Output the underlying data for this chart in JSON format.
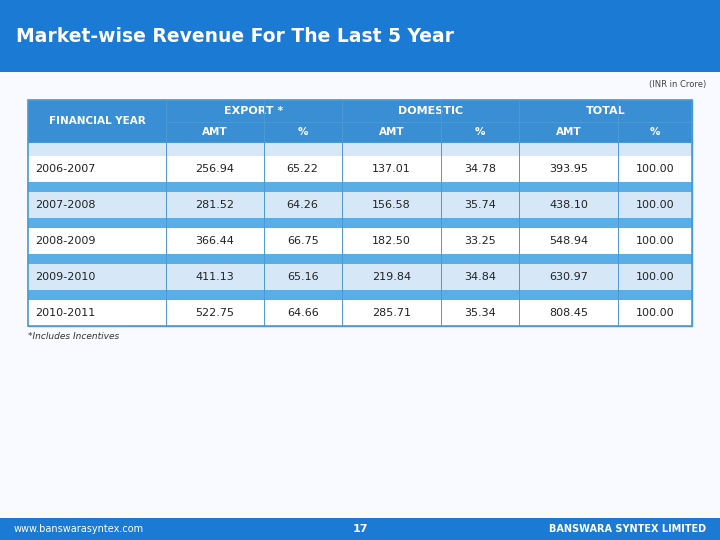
{
  "title": "Market-wise Revenue For The Last 5 Year",
  "subtitle": "(INR in Crore)",
  "header_bg": "#3a8fd4",
  "header_text_color": "#ffffff",
  "row_bg_light": "#d6e8f7",
  "row_bg_white": "#ffffff",
  "row_separator_color": "#5aaee8",
  "table_border_color": "#4a9ad4",
  "rows": [
    [
      "2006-2007",
      "256.94",
      "65.22",
      "137.01",
      "34.78",
      "393.95",
      "100.00"
    ],
    [
      "2007-2008",
      "281.52",
      "64.26",
      "156.58",
      "35.74",
      "438.10",
      "100.00"
    ],
    [
      "2008-2009",
      "366.44",
      "66.75",
      "182.50",
      "33.25",
      "548.94",
      "100.00"
    ],
    [
      "2009-2010",
      "411.13",
      "65.16",
      "219.84",
      "34.84",
      "630.97",
      "100.00"
    ],
    [
      "2010-2011",
      "522.75",
      "64.66",
      "285.71",
      "35.34",
      "808.45",
      "100.00"
    ]
  ],
  "footnote": "*Includes Incentives",
  "footer_left": "www.banswarasyntex.com",
  "footer_center": "17",
  "footer_right": "BANSWARA SYNTEX LIMITED",
  "top_bar_color": "#1a7ad4",
  "bottom_bar_color": "#1a7ad4",
  "background_color": "#f8faff"
}
